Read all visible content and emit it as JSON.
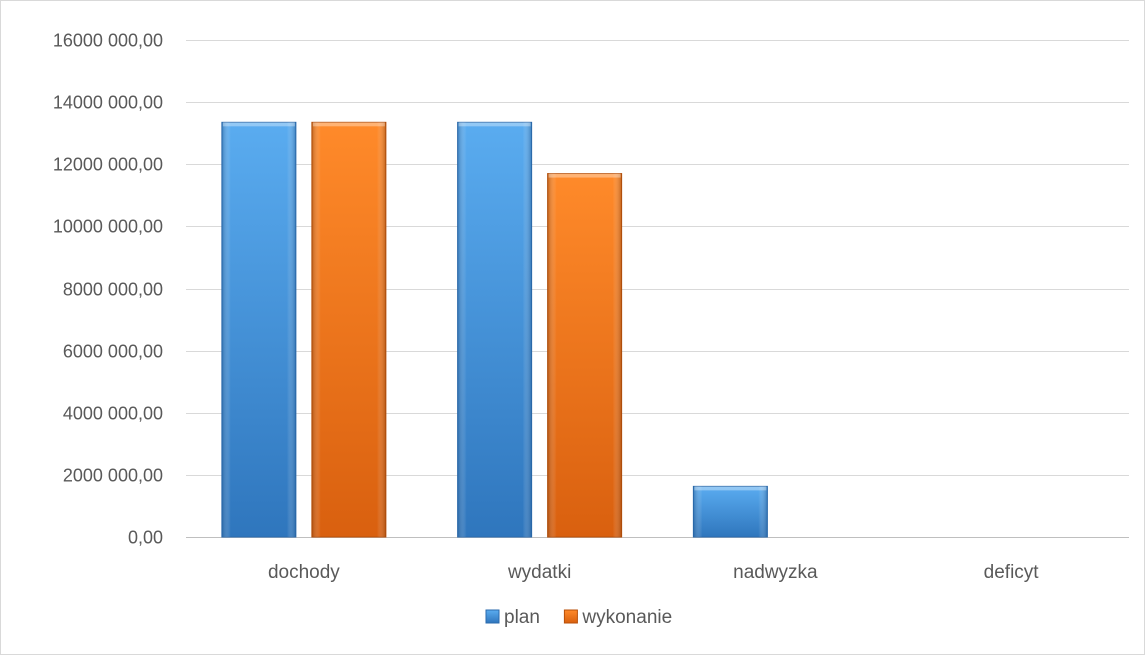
{
  "chart_data": {
    "type": "bar",
    "title": "",
    "xlabel": "",
    "ylabel": "",
    "categories": [
      "dochody",
      "wydatki",
      "nadwyzka",
      "deficyt"
    ],
    "series": [
      {
        "name": "plan",
        "values": [
          13350000,
          13350000,
          1630000,
          0
        ],
        "color": "#3f8fd8"
      },
      {
        "name": "wykonanie",
        "values": [
          13350000,
          11700000,
          0,
          0
        ],
        "color": "#f07a1c"
      }
    ],
    "ylim": [
      0,
      16000000
    ],
    "yticks": [
      0,
      2000000,
      4000000,
      6000000,
      8000000,
      10000000,
      12000000,
      14000000,
      16000000
    ],
    "ytick_labels": [
      "0,00",
      "2000 000,00",
      "4000 000,00",
      "6000 000,00",
      "8000 000,00",
      "10000 000,00",
      "12000 000,00",
      "14000 000,00",
      "16000 000,00"
    ],
    "grid": true,
    "legend_position": "bottom"
  }
}
